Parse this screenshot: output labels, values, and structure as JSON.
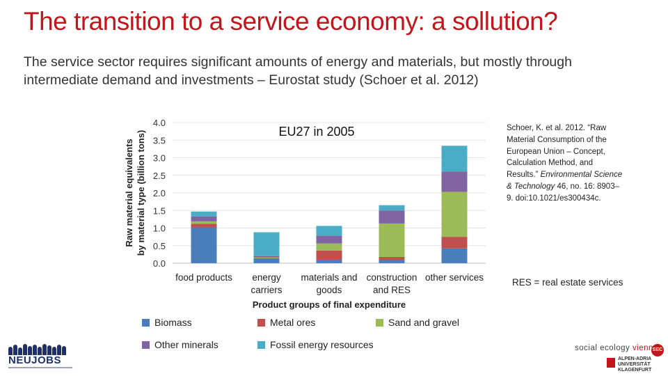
{
  "slide": {
    "title": "The transition to a service economy: a sollution?",
    "subtitle": "The service sector requires significant amounts of energy and materials, but mostly through intermediate demand and investments – Eurostat study (Schoer et al. 2012)"
  },
  "reference": {
    "part1": "Schoer, K. et al. 2012. “Raw Material Consumption of the European Union – Concept, Calculation Method, and Results.” ",
    "journal": "Environmental Science & Technology",
    "part2": " 46, no. 16: 8903–9. doi:10.1021/es300434c."
  },
  "res_note": "RES = real estate services",
  "logos": {
    "neujobs": "NEUJOBS",
    "sec_name_a": "social",
    "sec_name_b": "ecology",
    "sec_name_c": "vienna",
    "sec_badge": "SEC",
    "uni_line1": "ALPEN-ADRIA",
    "uni_line2": "UNIVERSITÄT",
    "uni_line3": "KLAGENFURT"
  },
  "colors": {
    "biomass": "#4a7ebb",
    "metal_ores": "#c0504d",
    "sand_gravel": "#9bbb59",
    "other_minerals": "#8064a2",
    "fossil": "#4bacc6",
    "title": "#c0161c"
  },
  "chart_data": {
    "type": "bar",
    "stacked": true,
    "title": "EU27 in 2005",
    "xlabel": "Product groups of final expenditure",
    "ylabel_line1": "Raw material equivalents",
    "ylabel_line2": "by material type (billion tons)",
    "ylim": [
      0,
      4.0
    ],
    "yticks": [
      "0.0",
      "0.5",
      "1.0",
      "1.5",
      "2.0",
      "2.5",
      "3.0",
      "3.5",
      "4.0"
    ],
    "categories": [
      [
        "food products"
      ],
      [
        "energy",
        "carriers"
      ],
      [
        "materials and",
        "goods"
      ],
      [
        "construction",
        "and RES"
      ],
      [
        "other services"
      ]
    ],
    "series": [
      {
        "name": "Biomass",
        "color": "#4a7ebb",
        "values": [
          1.02,
          0.12,
          0.1,
          0.08,
          0.42
        ]
      },
      {
        "name": "Metal ores",
        "color": "#c0504d",
        "values": [
          0.1,
          0.02,
          0.26,
          0.1,
          0.33
        ]
      },
      {
        "name": "Sand and gravel",
        "color": "#9bbb59",
        "values": [
          0.07,
          0.02,
          0.2,
          0.95,
          1.28
        ]
      },
      {
        "name": "Other minerals",
        "color": "#8064a2",
        "values": [
          0.14,
          0.04,
          0.22,
          0.37,
          0.58
        ]
      },
      {
        "name": "Fossil energy resources",
        "color": "#4bacc6",
        "values": [
          0.14,
          0.68,
          0.28,
          0.15,
          0.73
        ]
      }
    ],
    "legend_position": "bottom"
  }
}
